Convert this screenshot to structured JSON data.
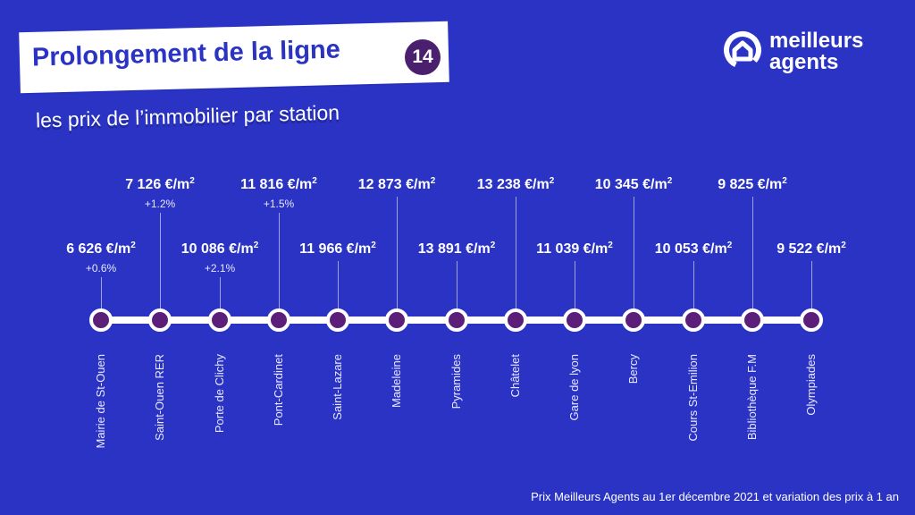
{
  "header": {
    "title": "Prolongement de la ligne",
    "line_number": "14",
    "subtitle": "les prix de l’immobilier par station"
  },
  "logo": {
    "line1": "meilleurs",
    "line2": "agents"
  },
  "colors": {
    "background": "#2a33c4",
    "dot": "#5b1f7a",
    "badge": "#4a1f6e",
    "title": "#2a33c4"
  },
  "unit": "€/m",
  "unit_exp": "2",
  "stations": [
    {
      "name": "Mairie de St-Ouen",
      "price": "6 626",
      "variation": "+0.6%",
      "row": "low"
    },
    {
      "name": "Saint-Ouen RER",
      "price": "7 126",
      "variation": "+1.2%",
      "row": "high"
    },
    {
      "name": "Porte de Clichy",
      "price": "10 086",
      "variation": "+2.1%",
      "row": "low"
    },
    {
      "name": "Pont-Cardinet",
      "price": "11 816",
      "variation": "+1.5%",
      "row": "high"
    },
    {
      "name": "Saint-Lazare",
      "price": "11 966",
      "variation": "",
      "row": "low"
    },
    {
      "name": "Madeleine",
      "price": "12 873",
      "variation": "",
      "row": "high"
    },
    {
      "name": "Pyramides",
      "price": "13 891",
      "variation": "",
      "row": "low"
    },
    {
      "name": "Châtelet",
      "price": "13 238",
      "variation": "",
      "row": "high"
    },
    {
      "name": "Gare de lyon",
      "price": "11 039",
      "variation": "",
      "row": "low"
    },
    {
      "name": "Bercy",
      "price": "10 345",
      "variation": "",
      "row": "high"
    },
    {
      "name": "Cours St-Emilion",
      "price": "10 053",
      "variation": "",
      "row": "low"
    },
    {
      "name": "Bibliothèque F.M",
      "price": "9 825",
      "variation": "",
      "row": "high"
    },
    {
      "name": "Olympiades",
      "price": "9 522",
      "variation": "",
      "row": "low"
    }
  ],
  "footer": "Prix Meilleurs Agents au 1er décembre 2021 et variation des prix à 1 an"
}
